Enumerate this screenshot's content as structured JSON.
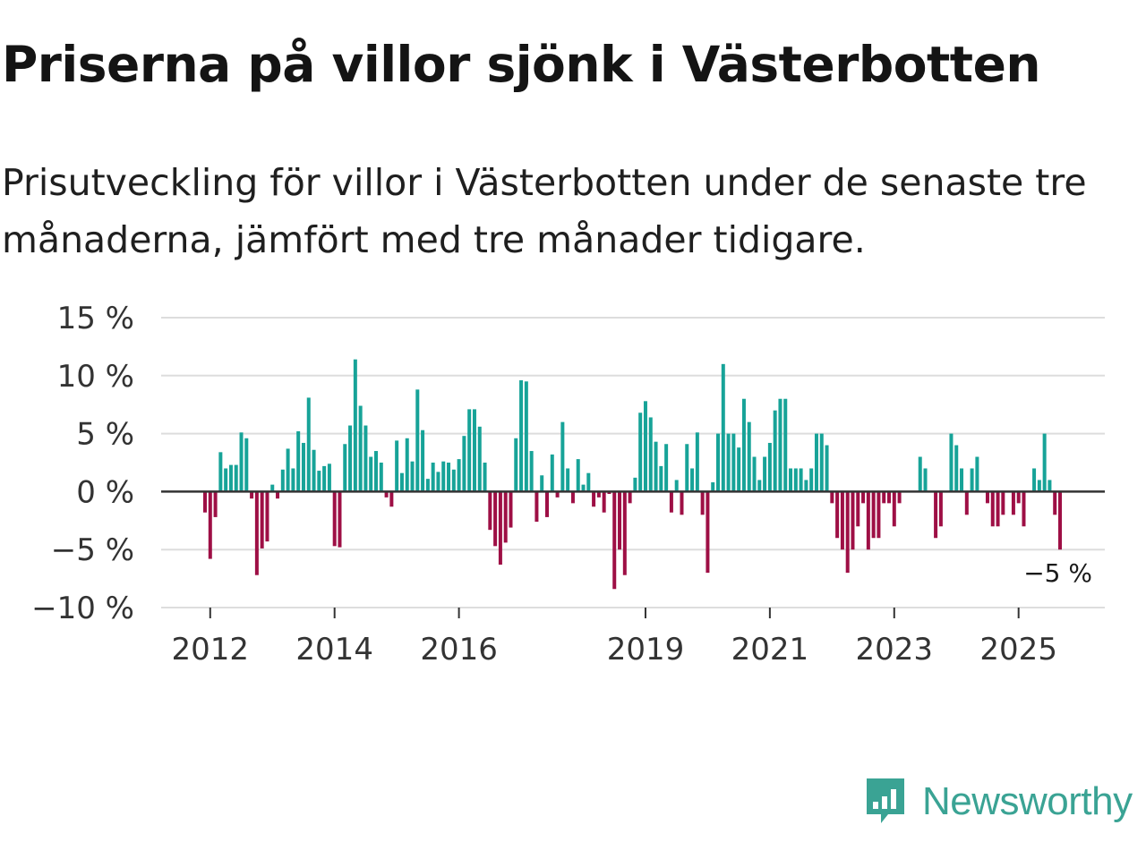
{
  "header": {
    "title": "Priserna på villor sjönk i Västerbotten",
    "subtitle": "Prisutveckling för villor i Västerbotten under de senaste tre månaderna, jämfört med tre månader tidigare."
  },
  "brand": {
    "name": "Newsworthy",
    "color": "#3aa394",
    "icon": "newsworthy-logo-icon"
  },
  "colors": {
    "positive": "#17a398",
    "negative": "#9e0f45",
    "gridline": "#dddddd",
    "zeroline": "#333333"
  },
  "chart_data": {
    "type": "bar",
    "title": "Priserna på villor sjönk i Västerbotten",
    "xlabel": "",
    "ylabel": "",
    "ylim": [
      -10,
      15
    ],
    "yticks": [
      -10,
      -5,
      0,
      5,
      10,
      15
    ],
    "ytick_labels": [
      "−10 %",
      "−5 %",
      "0 %",
      "5 %",
      "10 %",
      "15 %"
    ],
    "xticks": [
      2012,
      2014,
      2016,
      2019,
      2021,
      2023,
      2025
    ],
    "start": "2011-12",
    "frequency": "monthly",
    "values": [
      -1.8,
      -5.8,
      -2.2,
      3.4,
      2.0,
      2.3,
      2.3,
      5.1,
      4.6,
      -0.6,
      -7.2,
      -4.9,
      -4.3,
      0.6,
      -0.6,
      1.9,
      3.7,
      2.0,
      5.2,
      4.2,
      8.1,
      3.6,
      1.8,
      2.2,
      2.4,
      -4.7,
      -4.8,
      4.1,
      5.7,
      11.4,
      7.4,
      5.7,
      3.0,
      3.5,
      2.5,
      -0.5,
      -1.3,
      4.4,
      1.6,
      4.6,
      2.6,
      8.8,
      5.3,
      1.1,
      2.5,
      1.7,
      2.6,
      2.5,
      1.9,
      2.8,
      4.8,
      7.1,
      7.1,
      5.6,
      2.5,
      -3.3,
      -4.7,
      -6.3,
      -4.4,
      -3.1,
      4.6,
      9.6,
      9.5,
      3.5,
      -2.6,
      1.4,
      -2.2,
      3.2,
      -0.5,
      6.0,
      2.0,
      -1.0,
      2.8,
      0.6,
      1.6,
      -1.3,
      -0.5,
      -1.8,
      -0.2,
      -8.4,
      -5.0,
      -7.2,
      -1.0,
      1.2,
      6.8,
      7.8,
      6.4,
      4.3,
      2.2,
      4.1,
      -1.8,
      1.0,
      -2.0,
      4.1,
      2.0,
      5.1,
      -2.0,
      -7.0,
      0.8,
      5.0,
      11.0,
      5.0,
      5.0,
      3.8,
      8.0,
      6.0,
      3.0,
      1.0,
      3.0,
      4.2,
      7.0,
      8.0,
      8.0,
      2.0,
      2.0,
      2.0,
      1.0,
      2.0,
      5.0,
      5.0,
      4.0,
      -1.0,
      -4.0,
      -5.0,
      -7.0,
      -5.0,
      -3.0,
      -1.0,
      -5.0,
      -4.0,
      -4.0,
      -1.0,
      -1.0,
      -3.0,
      -1.0,
      0,
      0,
      0,
      3.0,
      2.0,
      0,
      -4.0,
      -3.0,
      0,
      5.0,
      4.0,
      2.0,
      -2.0,
      2.0,
      3.0,
      0,
      -1.0,
      -3.0,
      -3.0,
      -2.0,
      0,
      -2.0,
      -1.0,
      -3.0,
      0,
      2.0,
      1.0,
      5.0,
      1.0,
      -2.0,
      -5.0
    ],
    "last_value_label": "−5 %"
  }
}
